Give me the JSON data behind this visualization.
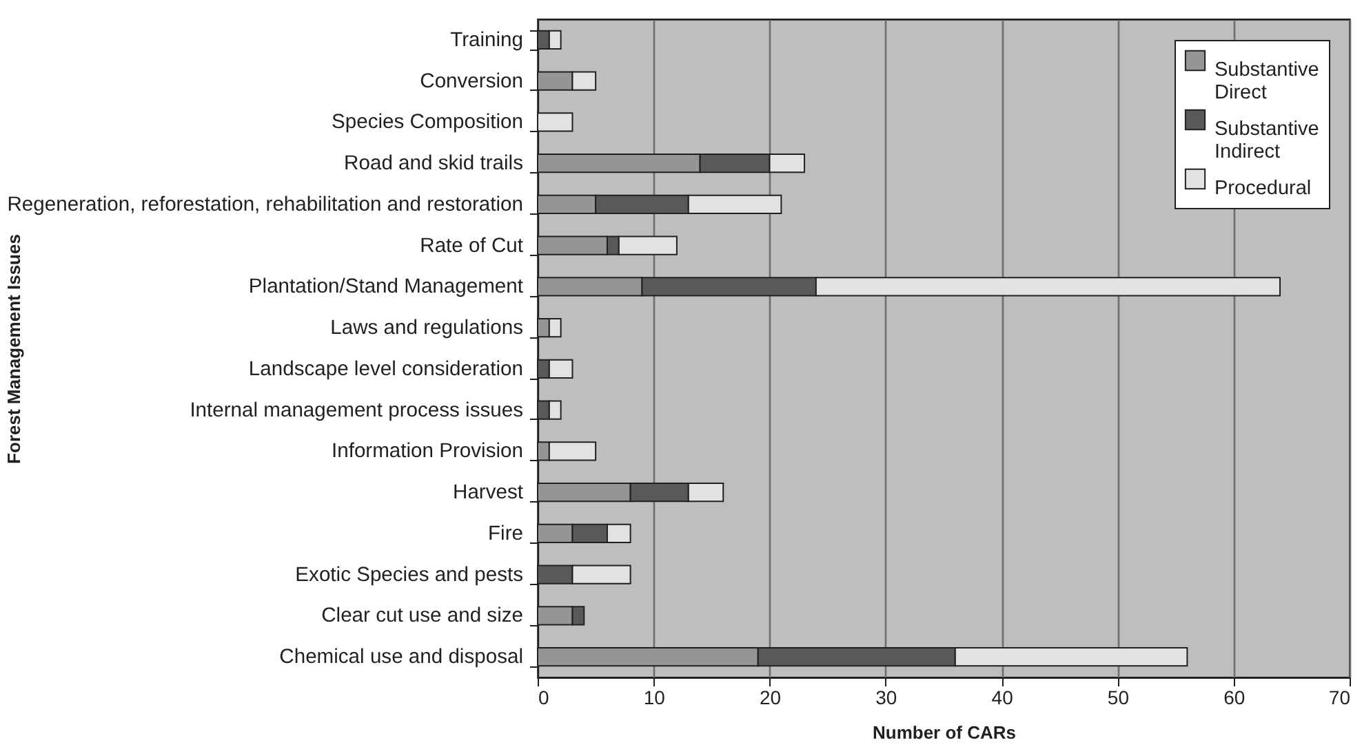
{
  "chart_data": {
    "type": "bar",
    "orientation": "horizontal",
    "stacked": true,
    "xlabel": "Number of CARs",
    "ylabel": "Forest Management Issues",
    "categories": [
      "Training",
      "Conversion",
      "Species Composition",
      "Road and skid trails",
      "Regeneration, reforestation, rehabilitation and restoration",
      "Rate of Cut",
      "Plantation/Stand Management",
      "Laws and regulations",
      "Landscape level consideration",
      "Internal management process issues",
      "Information Provision",
      "Harvest",
      "Fire",
      "Exotic Species and pests",
      "Clear cut use and size",
      "Chemical use and disposal"
    ],
    "series": [
      {
        "name": "Substantive Direct",
        "color": "#949597",
        "values": [
          0,
          3,
          0,
          14,
          5,
          6,
          9,
          1,
          0,
          0,
          1,
          8,
          3,
          0,
          3,
          19
        ]
      },
      {
        "name": "Substantive Indirect",
        "color": "#58595b",
        "values": [
          1,
          0,
          0,
          6,
          8,
          1,
          15,
          0,
          1,
          1,
          0,
          5,
          3,
          3,
          1,
          17
        ]
      },
      {
        "name": "Procedural",
        "color": "#e1e2e4",
        "values": [
          1,
          2,
          3,
          3,
          8,
          5,
          40,
          1,
          2,
          1,
          4,
          3,
          2,
          5,
          0,
          20
        ]
      }
    ],
    "xlim": [
      0,
      70
    ],
    "xticks": [
      0,
      10,
      20,
      30,
      40,
      50,
      60,
      70
    ],
    "grid": "x",
    "legend": "top right"
  }
}
